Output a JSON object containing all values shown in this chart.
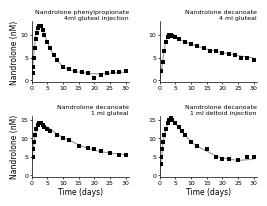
{
  "panels": [
    {
      "title": "Nandrolone phenylpropionate\n4ml gluteal injection",
      "ylabel": "Nandrolone (nM)",
      "xlabel": "",
      "xlim": [
        0,
        31
      ],
      "ylim": [
        -0.5,
        13
      ],
      "yticks": [
        0,
        5,
        10
      ],
      "xticks": [
        0,
        5,
        10,
        15,
        20,
        25,
        30
      ],
      "scatter_x": [
        0.3,
        0.5,
        0.7,
        1.0,
        1.3,
        1.6,
        2.0,
        2.5,
        3.0,
        3.5,
        4.0,
        5,
        6,
        7,
        8,
        10,
        12,
        14,
        16,
        18,
        20,
        22,
        24,
        26,
        28,
        30
      ],
      "scatter_y": [
        1.5,
        3,
        5,
        7,
        9,
        10.5,
        11.5,
        12,
        12,
        11,
        10,
        8.5,
        7,
        5.5,
        4.5,
        3,
        2.5,
        2,
        1.8,
        1.5,
        0.5,
        1.2,
        1.5,
        1.8,
        1.8,
        2.0
      ],
      "curve_x": [
        0,
        0.3,
        0.6,
        1,
        1.5,
        2,
        2.5,
        3,
        3.5,
        4,
        5,
        6,
        7,
        8,
        10,
        12,
        14,
        16,
        18,
        20,
        22,
        24,
        26,
        28,
        30
      ],
      "curve_y": [
        0,
        2,
        5,
        8,
        10.5,
        11.8,
        12.2,
        12,
        11.2,
        10.2,
        8.5,
        6.8,
        5.5,
        4.5,
        3,
        2.3,
        1.9,
        1.7,
        1.5,
        1.4,
        1.4,
        1.5,
        1.6,
        1.7,
        1.8
      ]
    },
    {
      "title": "Nandrolone decanoate\n4 ml gluteal",
      "ylabel": "",
      "xlabel": "",
      "xlim": [
        0,
        31
      ],
      "ylim": [
        -0.5,
        13
      ],
      "yticks": [
        0,
        5,
        10
      ],
      "xticks": [
        0,
        5,
        10,
        15,
        20,
        25,
        30
      ],
      "scatter_x": [
        0.5,
        1,
        1.5,
        2,
        2.5,
        3,
        3.5,
        4,
        5,
        6,
        8,
        10,
        12,
        14,
        16,
        18,
        20,
        22,
        24,
        26,
        28,
        30
      ],
      "scatter_y": [
        2,
        4,
        6.5,
        8.5,
        9.5,
        10,
        10,
        9.8,
        9.5,
        9,
        8.5,
        8,
        7.5,
        7,
        6.5,
        6.5,
        6,
        5.8,
        5.5,
        5,
        4.8,
        4.5
      ],
      "curve_x": [
        0,
        0.5,
        1,
        1.5,
        2,
        2.5,
        3,
        3.5,
        4,
        5,
        6,
        8,
        10,
        12,
        14,
        16,
        18,
        20,
        22,
        24,
        26,
        28,
        30
      ],
      "curve_y": [
        0,
        2,
        4.5,
        7,
        8.8,
        9.8,
        10.2,
        10.2,
        10,
        9.5,
        9,
        8.5,
        8,
        7.5,
        7,
        6.7,
        6.4,
        6.1,
        5.8,
        5.6,
        5.3,
        5.1,
        4.9
      ]
    },
    {
      "title": "Nandrolone decanoate\n1 ml gluteal",
      "ylabel": "Nandrolone (nM)",
      "xlabel": "Time (days)",
      "xlim": [
        0,
        31
      ],
      "ylim": [
        -0.5,
        16
      ],
      "yticks": [
        0,
        5,
        10,
        15
      ],
      "xticks": [
        0,
        5,
        10,
        15,
        20,
        25,
        30
      ],
      "scatter_x": [
        0.3,
        0.5,
        0.7,
        1.0,
        1.5,
        2.0,
        2.5,
        3.0,
        3.5,
        4,
        5,
        6,
        8,
        10,
        12,
        15,
        18,
        20,
        22,
        25,
        28,
        30
      ],
      "scatter_y": [
        5,
        7,
        9,
        11,
        12.5,
        13.5,
        14,
        14,
        13.5,
        13,
        12.5,
        12,
        11,
        10,
        9.5,
        8,
        7.5,
        7,
        6.5,
        6,
        5.5,
        5.5
      ],
      "curve_x": [
        0,
        0.3,
        0.7,
        1,
        1.5,
        2,
        2.5,
        3,
        3.5,
        4,
        5,
        6,
        8,
        10,
        12,
        15,
        18,
        20,
        22,
        25,
        28,
        30
      ],
      "curve_y": [
        3,
        5.5,
        8.5,
        10.5,
        12.5,
        13.5,
        14.2,
        14.3,
        14,
        13.5,
        13,
        12.5,
        11.2,
        10.2,
        9.5,
        8.2,
        7.3,
        6.8,
        6.4,
        6.0,
        5.7,
        5.6
      ]
    },
    {
      "title": "Nandrolone decanoate\n1 ml deltoid injection",
      "ylabel": "",
      "xlabel": "Time (days)",
      "xlim": [
        0,
        31
      ],
      "ylim": [
        -0.5,
        16
      ],
      "yticks": [
        0,
        5,
        10,
        15
      ],
      "xticks": [
        0,
        5,
        10,
        15,
        20,
        25,
        30
      ],
      "scatter_x": [
        0.3,
        0.5,
        0.7,
        1.0,
        1.5,
        2.0,
        2.5,
        3.0,
        3.5,
        4,
        5,
        6,
        7,
        8,
        10,
        12,
        15,
        18,
        20,
        22,
        25,
        28,
        30
      ],
      "scatter_y": [
        3,
        5,
        7,
        9,
        11,
        12.5,
        14,
        15,
        15.5,
        15,
        14,
        13,
        12,
        11,
        9,
        8,
        7,
        5,
        4.5,
        4.5,
        4,
        5,
        5
      ],
      "curve_x": [
        0,
        0.3,
        0.7,
        1,
        1.5,
        2,
        2.5,
        3,
        3.5,
        4,
        5,
        6,
        7,
        8,
        10,
        12,
        15,
        18,
        20,
        22,
        25,
        28,
        30
      ],
      "curve_y": [
        0.5,
        3,
        6,
        8.5,
        11,
        12.5,
        14,
        15,
        15.5,
        15.2,
        14,
        13,
        12,
        11,
        9,
        7.8,
        6.5,
        5.2,
        4.7,
        4.4,
        4.0,
        4.2,
        4.4
      ]
    }
  ],
  "marker": "s",
  "marker_size": 2.5,
  "marker_color": "black",
  "line_color": "#999999",
  "line_width": 0.8,
  "title_fontsize": 4.5,
  "tick_fontsize": 4.5,
  "label_fontsize": 5.5,
  "bg_color": "white"
}
